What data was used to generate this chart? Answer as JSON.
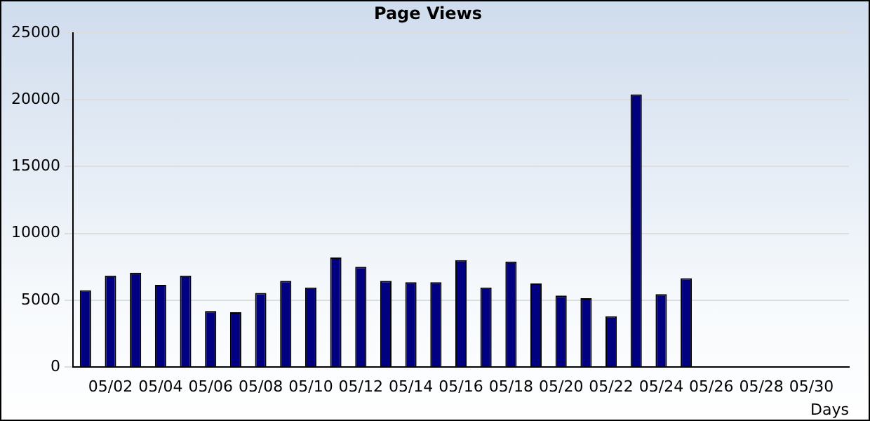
{
  "chart_data": {
    "type": "bar",
    "title": "Page Views",
    "xlabel": "Days",
    "categories": [
      null,
      "05/02",
      null,
      "05/04",
      null,
      "05/06",
      null,
      "05/08",
      null,
      "05/10",
      null,
      "05/12",
      null,
      "05/14",
      null,
      "05/16",
      null,
      "05/18",
      null,
      "05/20",
      null,
      "05/22",
      null,
      "05/24",
      null,
      "05/26",
      null,
      "05/28",
      null,
      "05/30",
      null
    ],
    "values": [
      5750,
      6850,
      7050,
      6150,
      6850,
      4200,
      4100,
      5550,
      6450,
      5950,
      8200,
      7500,
      6450,
      6350,
      6350,
      8000,
      5950,
      7900,
      6250,
      5350,
      5150,
      3800,
      20400,
      5450,
      6650,
      null,
      null,
      null,
      null,
      null,
      null
    ],
    "color": "#000080",
    "ylim": [
      0,
      25000
    ],
    "yticks": [
      0,
      5000,
      10000,
      15000,
      20000,
      25000
    ],
    "grid": "y",
    "legend": false
  }
}
